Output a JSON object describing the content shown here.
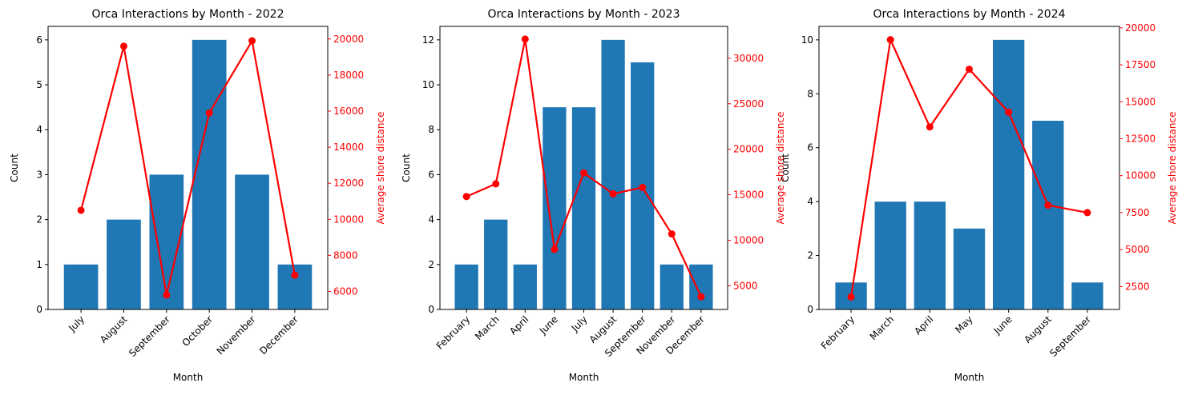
{
  "chart_data": [
    {
      "type": "bar",
      "title": "Orca Interactions by Month - 2022",
      "xlabel": "Month",
      "ylabel": "Count",
      "y2label": "Average shore distance",
      "categories": [
        "July",
        "August",
        "September",
        "October",
        "November",
        "December"
      ],
      "series": [
        {
          "type": "bar",
          "axis": "left",
          "color": "#1f77b4",
          "values": [
            1,
            2,
            3,
            6,
            3,
            1
          ]
        },
        {
          "type": "line",
          "axis": "right",
          "color": "#ff0000",
          "values": [
            10500,
            19600,
            5800,
            15900,
            19900,
            6900
          ]
        }
      ],
      "ylim": [
        0,
        6.3
      ],
      "y2lim": [
        5000,
        20700
      ],
      "yticks": [
        0,
        1,
        2,
        3,
        4,
        5,
        6
      ],
      "y2ticks": [
        6000,
        8000,
        10000,
        12000,
        14000,
        16000,
        18000,
        20000
      ],
      "grid": false
    },
    {
      "type": "bar",
      "title": "Orca Interactions by Month - 2023",
      "xlabel": "Month",
      "ylabel": "Count",
      "y2label": "Average shore distance",
      "categories": [
        "February",
        "March",
        "April",
        "June",
        "July",
        "August",
        "September",
        "November",
        "December"
      ],
      "series": [
        {
          "type": "bar",
          "axis": "left",
          "color": "#1f77b4",
          "values": [
            2,
            4,
            2,
            9,
            9,
            12,
            11,
            2,
            2
          ]
        },
        {
          "type": "line",
          "axis": "right",
          "color": "#ff0000",
          "values": [
            14800,
            16200,
            32100,
            9000,
            17400,
            15100,
            15800,
            10700,
            3800
          ]
        }
      ],
      "ylim": [
        0,
        12.6
      ],
      "y2lim": [
        2400,
        33500
      ],
      "yticks": [
        0,
        2,
        4,
        6,
        8,
        10,
        12
      ],
      "y2ticks": [
        5000,
        10000,
        15000,
        20000,
        25000,
        30000
      ],
      "grid": false
    },
    {
      "type": "bar",
      "title": "Orca Interactions by Month - 2024",
      "xlabel": "Month",
      "ylabel": "Count",
      "y2label": "Average shore distance",
      "categories": [
        "February",
        "March",
        "April",
        "May",
        "June",
        "August",
        "September"
      ],
      "series": [
        {
          "type": "bar",
          "axis": "left",
          "color": "#1f77b4",
          "values": [
            1,
            4,
            4,
            3,
            10,
            7,
            1
          ]
        },
        {
          "type": "line",
          "axis": "right",
          "color": "#ff0000",
          "values": [
            1800,
            19200,
            13300,
            17200,
            14300,
            8000,
            7500
          ]
        }
      ],
      "ylim": [
        0,
        10.5
      ],
      "y2lim": [
        950,
        20100
      ],
      "yticks": [
        0,
        2,
        4,
        6,
        8,
        10
      ],
      "y2ticks": [
        2500,
        5000,
        7500,
        10000,
        12500,
        15000,
        17500,
        20000
      ],
      "grid": false
    }
  ]
}
